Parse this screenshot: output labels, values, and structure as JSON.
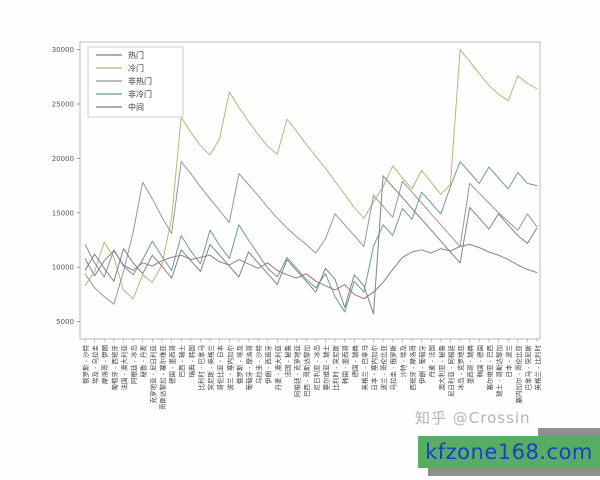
{
  "watermark": {
    "text": "知乎 @Crossin"
  },
  "banner": {
    "text": "kfzone168.com",
    "bg_color": "#57ad62",
    "text_color": "#1e3ccd",
    "shadow_color": "#8f8f8f"
  },
  "chart_data": {
    "type": "line",
    "title": "",
    "xlabel": "",
    "ylabel": "",
    "grid": false,
    "legend_position": "upper left",
    "ylim": [
      3400,
      30700
    ],
    "yticks": [
      5000,
      10000,
      15000,
      20000,
      25000,
      30000
    ],
    "categories": [
      "俄罗斯 - 沙特",
      "埃及 - 乌拉圭",
      "摩洛哥 - 伊朗",
      "葡萄牙 - 西班牙",
      "法国 - 澳大利亚",
      "阿根廷 - 冰岛",
      "秘鲁 - 丹麦",
      "克罗地亚 - 尼日利亚",
      "哥斯达黎加 - 塞尔维亚",
      "德国 - 墨西哥",
      "巴西 - 瑞士",
      "瑞典 - 韩国",
      "比利时 - 巴拿马",
      "突尼斯 - 英格兰",
      "哥伦比亚 - 日本",
      "波兰 - 塞内加尔",
      "俄罗斯 - 埃及",
      "葡萄牙 - 摩洛哥",
      "乌拉圭 - 沙特",
      "伊朗 - 西班牙",
      "丹麦 - 澳大利亚",
      "法国 - 秘鲁",
      "阿根廷 - 克罗地亚",
      "巴西 - 哥斯达黎加",
      "尼日利亚 - 冰岛",
      "塞尔维亚 - 瑞士",
      "比利时 - 突尼斯",
      "韩国 - 墨西哥",
      "德国 - 瑞典",
      "英格兰 - 巴拿马",
      "日本 - 塞内加尔",
      "波兰 - 哥伦比亚",
      "乌拉圭 - 俄罗斯",
      "沙特 - 埃及",
      "西班牙 - 摩洛哥",
      "伊朗 - 葡萄牙",
      "丹麦 - 法国",
      "澳大利亚 - 秘鲁",
      "尼日利亚 - 阿根廷",
      "冰岛 - 克罗地亚",
      "墨西哥 - 瑞典",
      "韩国 - 德国",
      "塞尔维亚 - 巴西",
      "瑞士 - 哥斯达黎加",
      "日本 - 波兰",
      "塞内加尔 - 哥伦比亚",
      "巴拿马 - 突尼斯",
      "英格兰 - 比利时"
    ],
    "series": [
      {
        "name": "热门",
        "color": "#a06f6f",
        "values": [
          10800,
          9200,
          10600,
          11500,
          10200,
          9700,
          10400,
          10100,
          10600,
          10900,
          11100,
          10700,
          10900,
          11100,
          10500,
          10200,
          10700,
          10300,
          9900,
          10400,
          9700,
          9300,
          9000,
          9400,
          8700,
          8300,
          7900,
          8400,
          7500,
          7100,
          7700,
          8600,
          9800,
          10900,
          11400,
          11600,
          11300,
          11700,
          11500,
          11900,
          12100,
          11800,
          11400,
          11100,
          10700,
          10200,
          9800,
          9500
        ]
      },
      {
        "name": "冷门",
        "color": "#bfae6e",
        "values": [
          8300,
          9600,
          12300,
          10900,
          7900,
          7100,
          9300,
          8600,
          10200,
          14500,
          23800,
          22400,
          21200,
          20300,
          21800,
          26100,
          24700,
          23400,
          22200,
          21100,
          20400,
          23600,
          22500,
          21300,
          20200,
          19100,
          17900,
          16700,
          15500,
          14500,
          16000,
          17400,
          19300,
          18200,
          17200,
          18900,
          17800,
          16700,
          17600,
          30000,
          28900,
          27800,
          26700,
          25900,
          25300,
          27600,
          26900,
          26400
        ]
      },
      {
        "name": "非热门",
        "color": "#90909a",
        "values": [
          9400,
          8100,
          7300,
          6600,
          9600,
          13200,
          17800,
          16300,
          14600,
          13100,
          19700,
          18600,
          17400,
          16300,
          15200,
          14100,
          18600,
          17600,
          16600,
          15500,
          14500,
          13600,
          12800,
          12100,
          11300,
          12600,
          14900,
          13900,
          12900,
          11900,
          16600,
          15600,
          14600,
          17900,
          16900,
          15900,
          14900,
          13900,
          12900,
          11900,
          17700,
          16800,
          15900,
          15000,
          14200,
          13400,
          14900,
          13700
        ]
      },
      {
        "name": "非冷门",
        "color": "#5f9898",
        "values": [
          12100,
          10400,
          9100,
          11600,
          10100,
          9300,
          10700,
          12400,
          11000,
          9700,
          12900,
          11500,
          10300,
          13400,
          12000,
          10800,
          13900,
          12500,
          11200,
          9900,
          9100,
          10900,
          9900,
          8900,
          8100,
          9400,
          7300,
          5900,
          8700,
          7700,
          11900,
          13900,
          12900,
          15400,
          14400,
          16900,
          15900,
          14900,
          17400,
          19700,
          18700,
          17700,
          19200,
          18200,
          17200,
          18700,
          17700,
          17500
        ]
      },
      {
        "name": "中间",
        "color": "#7b7b83",
        "values": [
          9700,
          11200,
          9900,
          8700,
          11700,
          10400,
          9400,
          11100,
          10100,
          9000,
          11600,
          10600,
          9600,
          12100,
          11100,
          10100,
          9100,
          11400,
          10400,
          9400,
          8400,
          10700,
          9700,
          8700,
          7700,
          9900,
          8900,
          6300,
          9300,
          8300,
          5700,
          18400,
          17400,
          16400,
          15400,
          14400,
          13400,
          12400,
          11400,
          10400,
          15500,
          14500,
          13500,
          14900,
          13900,
          12900,
          12200,
          13600
        ]
      }
    ]
  }
}
